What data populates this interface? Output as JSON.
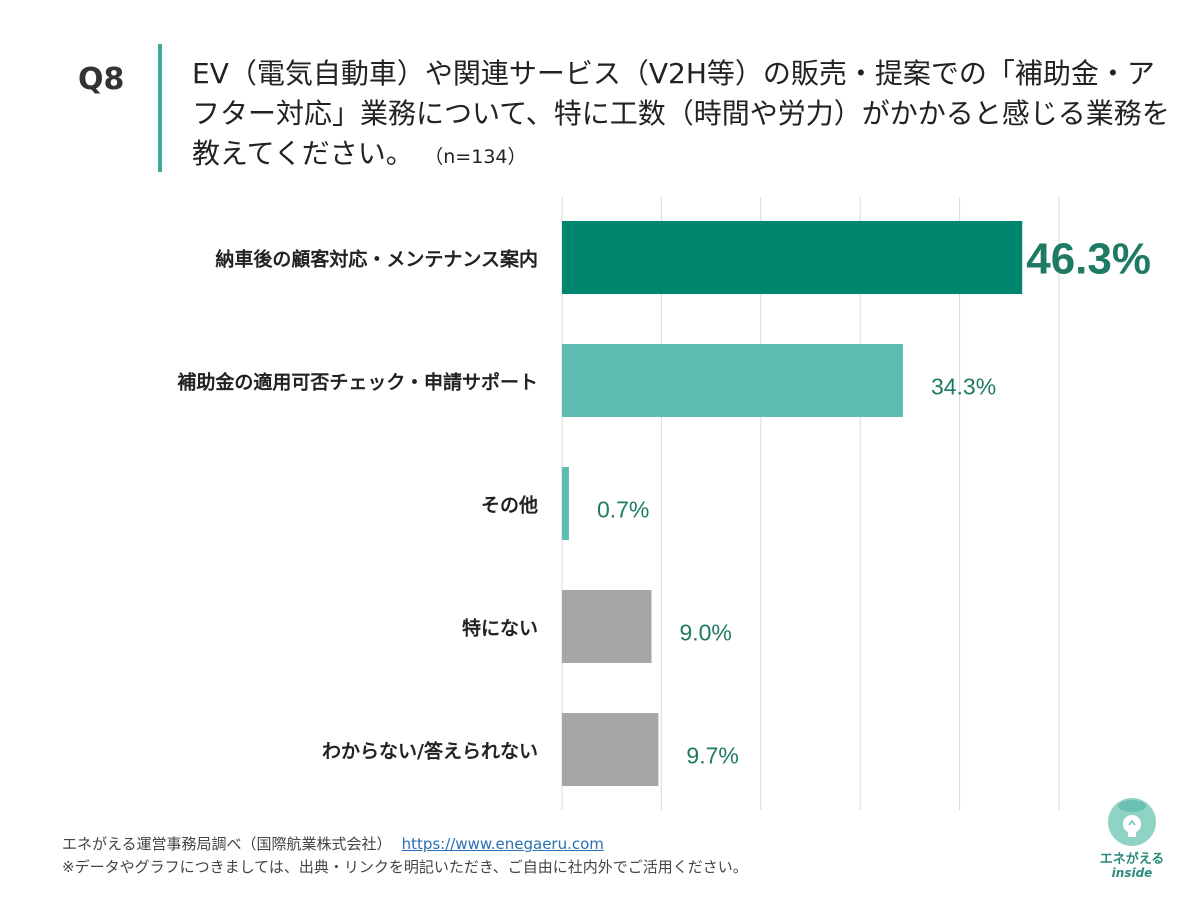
{
  "header": {
    "qnum": "Q8",
    "question": "EV（電気自動車）や関連サービス（V2H等）の販売・提案での「補助金・アフター対応」業務について、特に工数（時間や労力）がかかると感じる業務を教えてください。",
    "n": "（n=134）"
  },
  "chart_data": {
    "type": "bar",
    "orientation": "horizontal",
    "categories": [
      "納車後の顧客対応・メンテナンス案内",
      "補助金の適用可否チェック・申請サポート",
      "その他",
      "特にない",
      "わからない/答えられない"
    ],
    "values": [
      46.3,
      34.3,
      0.7,
      9.0,
      9.7
    ],
    "value_labels": [
      "46.3%",
      "34.3%",
      "0.7%",
      "9.0%",
      "9.7%"
    ],
    "colors": [
      "#00856f",
      "#5dbdb2",
      "#5dbdb2",
      "#a8a5a8",
      "#a8a5a8"
    ],
    "label_color": "#1e7a63",
    "xlim": [
      0,
      50
    ],
    "grid": true
  },
  "footer": {
    "source": "エネがえる運営事務局調べ（国際航業株式会社）",
    "url": "https://www.enegaeru.com",
    "note": "※データやグラフにつきましては、出典・リンクを明記いただき、ご自由に社内外でご活用ください。"
  },
  "logo": {
    "text": "エネがえる",
    "sub": "inside"
  }
}
